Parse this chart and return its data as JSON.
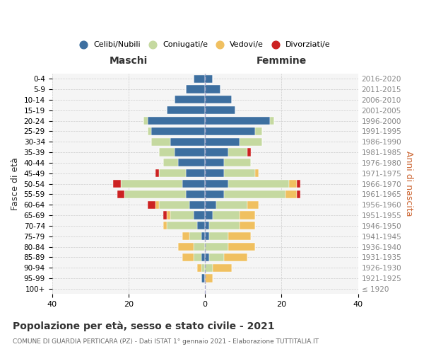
{
  "age_groups": [
    "100+",
    "95-99",
    "90-94",
    "85-89",
    "80-84",
    "75-79",
    "70-74",
    "65-69",
    "60-64",
    "55-59",
    "50-54",
    "45-49",
    "40-44",
    "35-39",
    "30-34",
    "25-29",
    "20-24",
    "15-19",
    "10-14",
    "5-9",
    "0-4"
  ],
  "birth_years": [
    "≤ 1920",
    "1921-1925",
    "1926-1930",
    "1931-1935",
    "1936-1940",
    "1941-1945",
    "1946-1950",
    "1951-1955",
    "1956-1960",
    "1961-1965",
    "1966-1970",
    "1971-1975",
    "1976-1980",
    "1981-1985",
    "1986-1990",
    "1991-1995",
    "1996-2000",
    "2001-2005",
    "2006-2010",
    "2011-2015",
    "2016-2020"
  ],
  "males": {
    "celibi": [
      0,
      1,
      0,
      1,
      0,
      1,
      2,
      3,
      4,
      5,
      6,
      5,
      7,
      8,
      9,
      14,
      15,
      10,
      8,
      5,
      3
    ],
    "coniugati": [
      0,
      0,
      1,
      2,
      3,
      3,
      8,
      6,
      8,
      16,
      16,
      7,
      4,
      4,
      5,
      1,
      1,
      0,
      0,
      0,
      0
    ],
    "vedovi": [
      0,
      0,
      1,
      3,
      4,
      2,
      1,
      1,
      1,
      0,
      0,
      0,
      0,
      0,
      0,
      0,
      0,
      0,
      0,
      0,
      0
    ],
    "divorziati": [
      0,
      0,
      0,
      0,
      0,
      0,
      0,
      1,
      2,
      2,
      2,
      1,
      0,
      0,
      0,
      0,
      0,
      0,
      0,
      0,
      0
    ]
  },
  "females": {
    "nubili": [
      0,
      0,
      0,
      1,
      0,
      1,
      1,
      2,
      3,
      5,
      6,
      5,
      5,
      6,
      9,
      13,
      17,
      8,
      7,
      4,
      2
    ],
    "coniugate": [
      0,
      0,
      2,
      4,
      6,
      5,
      8,
      7,
      8,
      16,
      16,
      8,
      7,
      5,
      6,
      2,
      1,
      0,
      0,
      0,
      0
    ],
    "vedove": [
      0,
      2,
      5,
      6,
      7,
      6,
      4,
      4,
      3,
      3,
      2,
      1,
      0,
      0,
      0,
      0,
      0,
      0,
      0,
      0,
      0
    ],
    "divorziate": [
      0,
      0,
      0,
      0,
      0,
      0,
      0,
      0,
      0,
      1,
      1,
      0,
      0,
      1,
      0,
      0,
      0,
      0,
      0,
      0,
      0
    ]
  },
  "colors": {
    "celibi": "#3d6fa0",
    "coniugati": "#c5d9a0",
    "vedovi": "#f0c060",
    "divorziati": "#cc2222"
  },
  "xlim": 40,
  "title": "Popolazione per età, sesso e stato civile - 2021",
  "subtitle": "COMUNE DI GUARDIA PERTICARA (PZ) - Dati ISTAT 1° gennaio 2021 - Elaborazione TUTTITALIA.IT",
  "ylabel_left": "Fasce di età",
  "ylabel_right": "Anni di nascita",
  "xlabel_left": "Maschi",
  "xlabel_right": "Femmine"
}
